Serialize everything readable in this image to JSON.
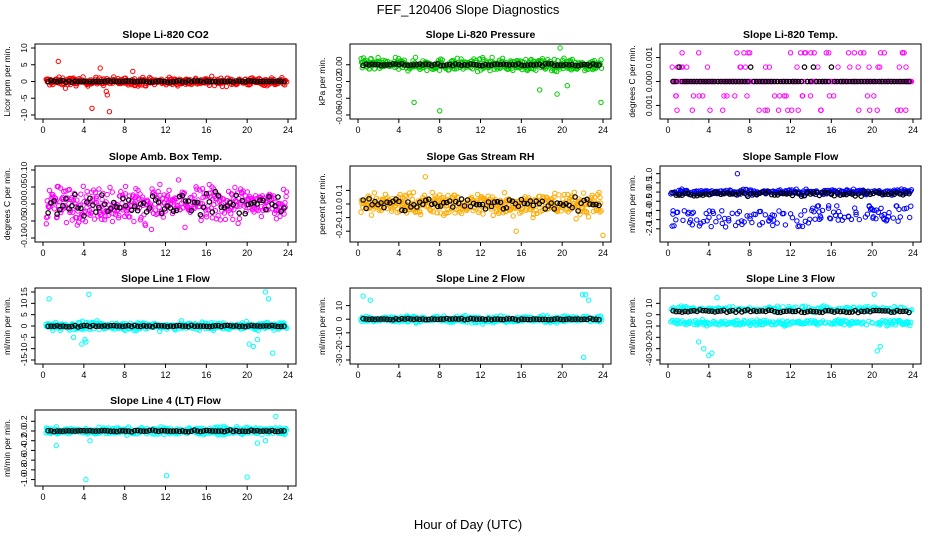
{
  "page_title": "FEF_120406  Slope Diagnostics",
  "shared_xlabel": "Hour of Day (UTC)",
  "colors": {
    "reference_points": "#000000",
    "axis": "#000000"
  },
  "chart_data": [
    {
      "type": "scatter",
      "title": "Slope Li-820 CO2",
      "ylabel": "Licor ppm per min.",
      "xlim": [
        0,
        24
      ],
      "ylim": [
        -10,
        10
      ],
      "xticks": [
        0,
        4,
        8,
        12,
        16,
        20,
        24
      ],
      "yticks": [
        -10,
        -5,
        0,
        5,
        10
      ],
      "color": "#ff0000",
      "spread": 1.0,
      "outliers": [
        [
          1.5,
          6
        ],
        [
          2.2,
          -2
        ],
        [
          4.8,
          -8
        ],
        [
          5.6,
          4
        ],
        [
          6.2,
          -3
        ],
        [
          6.5,
          -9
        ],
        [
          8.8,
          3
        ],
        [
          6.3,
          -4
        ]
      ]
    },
    {
      "type": "scatter",
      "title": "Slope Li-820 Pressure",
      "ylabel": "kPa per min.",
      "xlim": [
        0,
        24
      ],
      "ylim": [
        -0.06,
        0.02
      ],
      "xticks": [
        0,
        4,
        8,
        12,
        16,
        20,
        24
      ],
      "yticks": [
        -0.06,
        -0.04,
        -0.02,
        0.0
      ],
      "color": "#00cc00",
      "spread": 0.006,
      "outliers": [
        [
          5.5,
          -0.045
        ],
        [
          8,
          -0.055
        ],
        [
          17.8,
          -0.03
        ],
        [
          19.5,
          -0.035
        ],
        [
          20.5,
          -0.025
        ],
        [
          23.8,
          -0.045
        ],
        [
          19.8,
          0.02
        ]
      ]
    },
    {
      "type": "scatter",
      "title": "Slope Li-820 Temp.",
      "ylabel": "degrees C per min.",
      "xlim": [
        0,
        24
      ],
      "ylim": [
        -0.0014,
        0.0014
      ],
      "xticks": [
        0,
        4,
        8,
        12,
        16,
        20,
        24
      ],
      "yticks": [
        -0.001,
        0.0,
        0.001
      ],
      "color": "#ff00ff",
      "discrete_levels": [
        -0.0012,
        -0.0006,
        0,
        0.0006,
        0.0012
      ],
      "outliers": [
        [
          8,
          0.0012
        ],
        [
          12,
          0.0012
        ],
        [
          13,
          0.0012
        ],
        [
          14,
          0.0012
        ]
      ]
    },
    {
      "type": "scatter",
      "title": "Slope Amb. Box Temp.",
      "ylabel": "degrees C per min.",
      "xlim": [
        0,
        24
      ],
      "ylim": [
        -0.1,
        0.1
      ],
      "xticks": [
        0,
        4,
        8,
        12,
        16,
        20,
        24
      ],
      "yticks": [
        -0.1,
        -0.05,
        0.0,
        0.05,
        0.1
      ],
      "color": "#ff00ff",
      "spread": 0.045,
      "outliers": []
    },
    {
      "type": "scatter",
      "title": "Slope Gas Stream RH",
      "ylabel": "percent per min.",
      "xlim": [
        0,
        24
      ],
      "ylim": [
        -0.25,
        0.25
      ],
      "xticks": [
        0,
        4,
        8,
        12,
        16,
        20,
        24
      ],
      "yticks": [
        -0.2,
        -0.1,
        0.0,
        0.1
      ],
      "color": "#ffaa00",
      "spread": 0.07,
      "outliers": [
        [
          24,
          -0.23
        ],
        [
          15.5,
          -0.2
        ],
        [
          6.6,
          0.2
        ]
      ]
    },
    {
      "type": "scatter",
      "title": "Slope Sample Flow",
      "ylabel": "ml/min per min.",
      "xlim": [
        0,
        24
      ],
      "ylim": [
        -2.5,
        1.2
      ],
      "xticks": [
        0,
        4,
        8,
        12,
        16,
        20,
        24
      ],
      "yticks": [
        -2.0,
        -1.5,
        -1.0,
        -0.5,
        0.0,
        0.5,
        1.0
      ],
      "color": "#0000ff",
      "spread": 0.25,
      "outliers": [
        [
          6.8,
          1.0
        ]
      ]
    },
    {
      "type": "scatter",
      "title": "Slope Line 1 Flow",
      "ylabel": "ml/min per min.",
      "xlim": [
        0,
        24
      ],
      "ylim": [
        -15,
        15
      ],
      "xticks": [
        0,
        4,
        8,
        12,
        16,
        20,
        24
      ],
      "yticks": [
        -15,
        -10,
        -5,
        0,
        5,
        10,
        15
      ],
      "color": "#00ffff",
      "spread": 1.5,
      "outliers": [
        [
          0.6,
          12
        ],
        [
          4.5,
          14
        ],
        [
          3,
          -5
        ],
        [
          3.8,
          -8
        ],
        [
          4.2,
          -7
        ],
        [
          20.2,
          -8
        ],
        [
          20.6,
          -9
        ],
        [
          21,
          -6
        ],
        [
          21.8,
          15
        ],
        [
          22.1,
          12
        ],
        [
          22.5,
          -12
        ],
        [
          4.1,
          -6
        ]
      ]
    },
    {
      "type": "scatter",
      "title": "Slope Line 2 Flow",
      "ylabel": "ml/min per min.",
      "xlim": [
        0,
        24
      ],
      "ylim": [
        -30,
        20
      ],
      "xticks": [
        0,
        4,
        8,
        12,
        16,
        20,
        24
      ],
      "yticks": [
        -30,
        -20,
        -10,
        0,
        10
      ],
      "color": "#00ffff",
      "spread": 2.0,
      "outliers": [
        [
          0.5,
          17
        ],
        [
          1.2,
          14
        ],
        [
          22,
          18
        ],
        [
          22.3,
          18
        ],
        [
          22.6,
          14
        ],
        [
          22.1,
          -28
        ]
      ]
    },
    {
      "type": "scatter",
      "title": "Slope Line 3 Flow",
      "ylabel": "ml/min per min.",
      "xlim": [
        0,
        24
      ],
      "ylim": [
        -40,
        20
      ],
      "xticks": [
        0,
        4,
        8,
        12,
        16,
        20,
        24
      ],
      "yticks": [
        -40,
        -30,
        -20,
        -10,
        0,
        10
      ],
      "color": "#00ffff",
      "spread": 4.0,
      "outliers": [
        [
          3,
          -24
        ],
        [
          3.5,
          -30
        ],
        [
          4,
          -36
        ],
        [
          4.3,
          -34
        ],
        [
          20.2,
          18
        ],
        [
          20.5,
          -32
        ],
        [
          20.8,
          -28
        ],
        [
          4.8,
          15
        ]
      ]
    },
    {
      "type": "scatter",
      "title": "Slope Line 4 (LT) Flow",
      "ylabel": "ml/min per min.",
      "xlim": [
        0,
        24
      ],
      "ylim": [
        -1.05,
        0.35
      ],
      "xticks": [
        0,
        4,
        8,
        12,
        16,
        20,
        24
      ],
      "yticks": [
        -1.0,
        -0.8,
        -0.6,
        -0.4,
        -0.2,
        0.0,
        0.2
      ],
      "color": "#00ffff",
      "spread": 0.06,
      "outliers": [
        [
          4.2,
          -1.0
        ],
        [
          12.1,
          -0.92
        ],
        [
          20,
          -0.95
        ],
        [
          22.8,
          0.3
        ],
        [
          1.3,
          -0.3
        ],
        [
          4.6,
          -0.2
        ],
        [
          21,
          -0.25
        ],
        [
          21.8,
          -0.2
        ]
      ]
    }
  ]
}
